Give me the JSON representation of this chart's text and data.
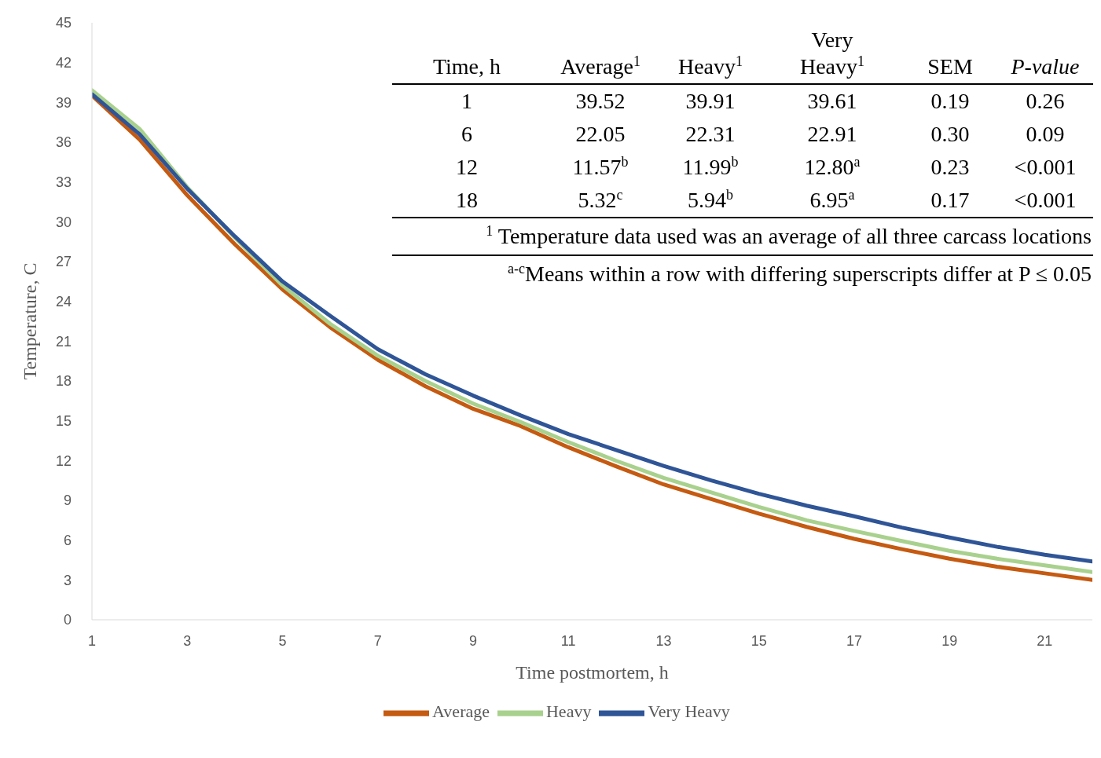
{
  "chart_data": {
    "type": "line",
    "xlabel": "Time postmortem, h",
    "ylabel": "Temperature, C",
    "x": [
      1,
      2,
      3,
      4,
      5,
      6,
      7,
      8,
      9,
      10,
      11,
      12,
      13,
      14,
      15,
      16,
      17,
      18,
      19,
      20,
      21,
      22
    ],
    "xlim": [
      1,
      22
    ],
    "xticks": [
      1,
      3,
      5,
      7,
      9,
      11,
      13,
      15,
      17,
      19,
      21
    ],
    "ylim": [
      0,
      45
    ],
    "yticks": [
      0,
      3,
      6,
      9,
      12,
      15,
      18,
      21,
      24,
      27,
      30,
      33,
      36,
      39,
      42,
      45
    ],
    "legend": "bottom",
    "marker": "none",
    "line_style": "solid",
    "series": [
      {
        "name": "Average",
        "color": "#c55a11",
        "values": [
          39.52,
          36.2,
          32.0,
          28.3,
          24.9,
          22.05,
          19.6,
          17.6,
          15.9,
          14.6,
          13.0,
          11.57,
          10.2,
          9.1,
          8.0,
          7.0,
          6.1,
          5.32,
          4.6,
          4.0,
          3.5,
          3.0
        ]
      },
      {
        "name": "Heavy",
        "color": "#a9d18e",
        "values": [
          39.91,
          37.0,
          32.6,
          28.8,
          25.2,
          22.31,
          19.9,
          18.0,
          16.3,
          14.9,
          13.4,
          11.99,
          10.7,
          9.6,
          8.5,
          7.5,
          6.7,
          5.94,
          5.2,
          4.6,
          4.1,
          3.6
        ]
      },
      {
        "name": "Very Heavy",
        "color": "#2f5597",
        "values": [
          39.61,
          36.6,
          32.5,
          28.9,
          25.5,
          22.91,
          20.4,
          18.5,
          16.9,
          15.4,
          14.0,
          12.8,
          11.6,
          10.5,
          9.5,
          8.6,
          7.8,
          6.95,
          6.2,
          5.5,
          4.9,
          4.4
        ]
      }
    ],
    "annotations": [
      "Time, h",
      "Average$^{1}$",
      "Heavy$^{1}$",
      "Very Heavy$^{1}$",
      "SEM",
      "P-value",
      "1",
      "39.52",
      "39.91",
      "39.61",
      "0.19",
      "0.26",
      "6",
      "22.05",
      "22.31",
      "22.91",
      "0.30",
      "0.09",
      "12",
      "11.57$^{b}$",
      "11.99$^{b}$",
      "12.80$^{a}$",
      "0.23",
      "<0.001",
      "18",
      "5.32$^{c}$",
      "5.94$^{b}$",
      "6.95$^{a}$",
      "0.17",
      "<0.001",
      "$^{1}$ Temperature data used was an average of all three carcass locations",
      "$^{a-c}$Means within a row with differing superscripts differ at P ≤ 0.05"
    ]
  }
}
